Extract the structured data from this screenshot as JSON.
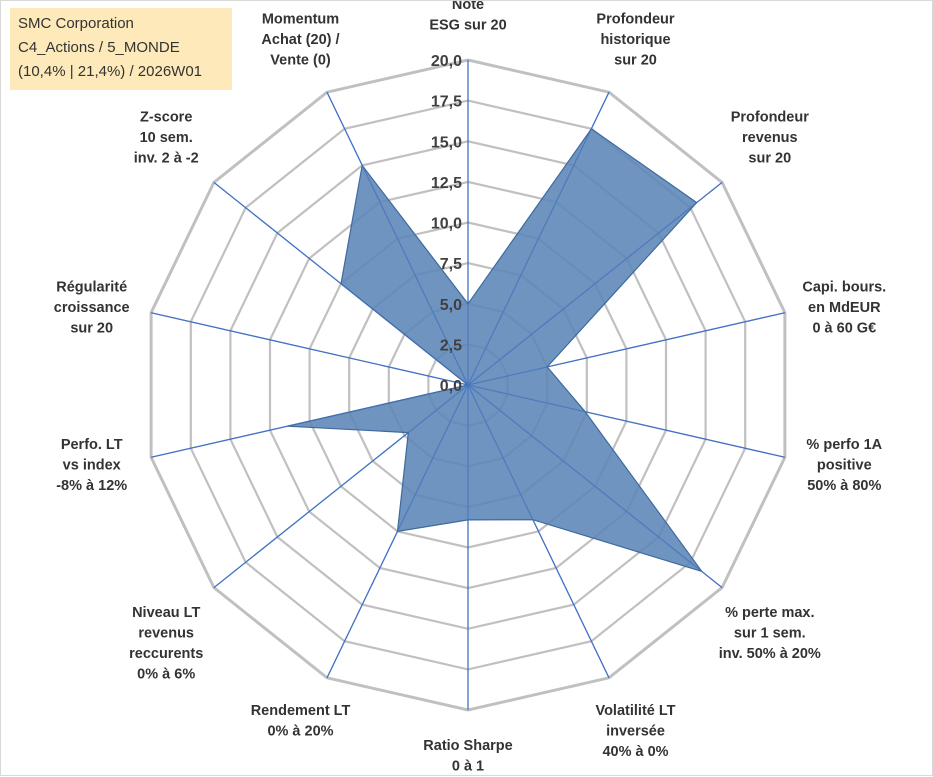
{
  "title_box": {
    "line1": "SMC Corporation",
    "line2": "C4_Actions / 5_MONDE",
    "line3": "(10,4% | 21,4%) / 2026W01"
  },
  "colors": {
    "fill": "#5b85b6",
    "stroke": "#3e6a9e",
    "grid": "#c0c0c0",
    "spoke": "#4472c4",
    "title_bg": "#fde9b9"
  },
  "chart_data": {
    "type": "radar",
    "rlim": [
      0,
      20
    ],
    "tick_labels": [
      "0,0",
      "2,5",
      "5,0",
      "7,5",
      "10,0",
      "12,5",
      "15,0",
      "17,5",
      "20,0"
    ],
    "categories": [
      [
        "Note",
        "ESG sur 20"
      ],
      [
        "Profondeur",
        "historique",
        "sur 20"
      ],
      [
        "Profondeur",
        "revenus",
        "sur 20"
      ],
      [
        "Capi. bours.",
        "en MdEUR",
        "0 à 60 G€"
      ],
      [
        "% perfo 1A",
        "positive",
        "50% à 80%"
      ],
      [
        "% perte max.",
        "sur 1 sem.",
        "inv. 50% à 20%"
      ],
      [
        "Volatilité LT",
        "inversée",
        "40% à 0%"
      ],
      [
        "Ratio Sharpe",
        "0 à 1"
      ],
      [
        "Rendement LT",
        "0% à 20%"
      ],
      [
        "Niveau LT",
        "revenus",
        "reccurents",
        "0% à 6%"
      ],
      [
        "Perfo. LT",
        "vs index",
        "-8% à 12%"
      ],
      [
        "Régularité",
        "croissance",
        "sur 20"
      ],
      [
        "Z-score",
        "10 sem.",
        "inv. 2 à -2"
      ],
      [
        "Momentum",
        "Achat (20) /",
        "Vente (0)"
      ]
    ],
    "values": [
      5.0,
      17.5,
      18.0,
      5.0,
      7.4,
      18.4,
      9.2,
      8.3,
      10.0,
      4.7,
      11.4,
      0.0,
      10.0,
      15.0
    ],
    "grid": true,
    "legend": "none"
  }
}
